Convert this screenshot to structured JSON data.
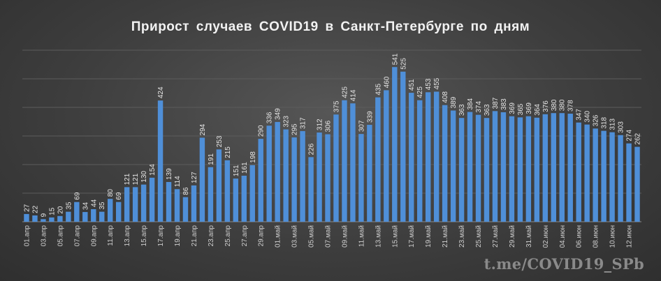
{
  "chart_data": {
    "type": "bar",
    "title": "Прирост случаев COVID19 в Санкт-Петербурге по дням",
    "xlabel": "",
    "ylabel": "",
    "ylim": [
      0,
      600
    ],
    "grid": true,
    "legend": "none",
    "bar_color": "#4f8fd8",
    "categories": [
      "01.апр",
      "02.апр",
      "03.апр",
      "04.апр",
      "05.апр",
      "06.апр",
      "07.апр",
      "08.апр",
      "09.апр",
      "10.апр",
      "11.апр",
      "12.апр",
      "13.апр",
      "14.апр",
      "15.апр",
      "16.апр",
      "17.апр",
      "18.апр",
      "19.апр",
      "20.апр",
      "21.апр",
      "22.апр",
      "23.апр",
      "24.апр",
      "25.апр",
      "26.апр",
      "27.апр",
      "28.апр",
      "29.апр",
      "30.апр",
      "01.май",
      "02.май",
      "03.май",
      "04.май",
      "05.май",
      "06.май",
      "07.май",
      "08.май",
      "09.май",
      "10.май",
      "11.май",
      "12.май",
      "13.май",
      "14.май",
      "15.май",
      "16.май",
      "17.май",
      "18.май",
      "19.май",
      "20.май",
      "21.май",
      "22.май",
      "23.май",
      "24.май",
      "25.май",
      "26.май",
      "27.май",
      "28.май",
      "29.май",
      "30.май",
      "31.май",
      "01.июн",
      "02.июн",
      "03.июн",
      "04.июн",
      "05.июн",
      "06.июн",
      "07.июн",
      "08.июн",
      "09.июн",
      "10.июн",
      "11.июн",
      "12.июн",
      "13.июн"
    ],
    "tick_labels": [
      "01.апр",
      "03.апр",
      "05.апр",
      "07.апр",
      "09.апр",
      "11.апр",
      "13.апр",
      "15.апр",
      "17.апр",
      "19.апр",
      "21.апр",
      "23.апр",
      "25.апр",
      "27.апр",
      "29.апр",
      "01.май",
      "03.май",
      "05.май",
      "07.май",
      "09.май",
      "11.май",
      "13.май",
      "15.май",
      "17.май",
      "19.май",
      "21.май",
      "23.май",
      "25.май",
      "27.май",
      "29.май",
      "31.май",
      "02.июн",
      "04.июн",
      "06.июн",
      "08.июн",
      "10.июн",
      "12.июн"
    ],
    "values": [
      27,
      22,
      9,
      15,
      20,
      35,
      69,
      34,
      44,
      35,
      80,
      69,
      121,
      121,
      130,
      154,
      424,
      139,
      114,
      86,
      127,
      294,
      191,
      253,
      215,
      151,
      161,
      198,
      290,
      336,
      349,
      323,
      295,
      317,
      226,
      312,
      306,
      375,
      425,
      414,
      307,
      339,
      435,
      460,
      541,
      525,
      451,
      425,
      453,
      455,
      408,
      389,
      363,
      384,
      374,
      363,
      387,
      383,
      369,
      365,
      369,
      364,
      376,
      380,
      380,
      378,
      347,
      340,
      326,
      318,
      313,
      303,
      274,
      262
    ]
  },
  "watermark": "t.me/COVID19_SPb"
}
